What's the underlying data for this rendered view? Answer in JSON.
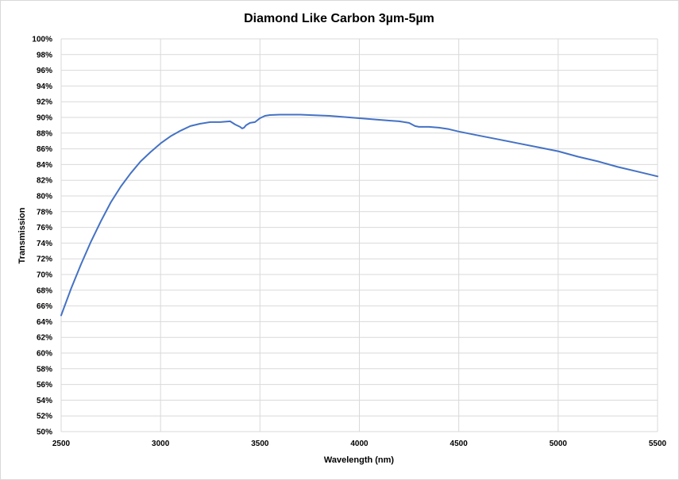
{
  "chart_data": {
    "type": "line",
    "title": "Diamond Like Carbon 3µm-5µm",
    "xlabel": "Wavelength (nm)",
    "ylabel": "Transmission",
    "xlim": [
      2500,
      5500
    ],
    "ylim": [
      50,
      100
    ],
    "x_ticks": [
      2500,
      3000,
      3500,
      4000,
      4500,
      5000,
      5500
    ],
    "x_tick_labels": [
      "2500",
      "3000",
      "3500",
      "4000",
      "4500",
      "5000",
      "5500"
    ],
    "y_ticks": [
      50,
      52,
      54,
      56,
      58,
      60,
      62,
      64,
      66,
      68,
      70,
      72,
      74,
      76,
      78,
      80,
      82,
      84,
      86,
      88,
      90,
      92,
      94,
      96,
      98,
      100
    ],
    "y_tick_labels": [
      "50%",
      "52%",
      "54%",
      "56%",
      "58%",
      "60%",
      "62%",
      "64%",
      "66%",
      "68%",
      "70%",
      "72%",
      "74%",
      "76%",
      "78%",
      "80%",
      "82%",
      "84%",
      "86%",
      "88%",
      "90%",
      "92%",
      "94%",
      "96%",
      "98%",
      "100%"
    ],
    "grid": true,
    "series": [
      {
        "color": "#4472c4",
        "x": [
          2500,
          2550,
          2600,
          2650,
          2700,
          2750,
          2800,
          2850,
          2900,
          2950,
          3000,
          3050,
          3100,
          3150,
          3200,
          3250,
          3300,
          3350,
          3375,
          3400,
          3410,
          3420,
          3430,
          3450,
          3475,
          3500,
          3525,
          3550,
          3600,
          3650,
          3700,
          3750,
          3800,
          3850,
          3900,
          3950,
          4000,
          4050,
          4100,
          4150,
          4200,
          4250,
          4280,
          4300,
          4350,
          4400,
          4450,
          4500,
          4600,
          4700,
          4800,
          4900,
          5000,
          5100,
          5200,
          5300,
          5400,
          5500
        ],
        "y": [
          64.8,
          68.2,
          71.3,
          74.2,
          76.8,
          79.2,
          81.2,
          82.9,
          84.4,
          85.6,
          86.7,
          87.6,
          88.3,
          88.9,
          89.2,
          89.4,
          89.4,
          89.5,
          89.1,
          88.8,
          88.6,
          88.7,
          89.0,
          89.3,
          89.4,
          89.9,
          90.2,
          90.3,
          90.35,
          90.35,
          90.35,
          90.3,
          90.25,
          90.2,
          90.1,
          90.0,
          89.9,
          89.8,
          89.7,
          89.6,
          89.5,
          89.3,
          88.9,
          88.8,
          88.8,
          88.7,
          88.5,
          88.2,
          87.7,
          87.2,
          86.7,
          86.2,
          85.7,
          85.0,
          84.4,
          83.7,
          83.1,
          82.5
        ]
      }
    ]
  }
}
